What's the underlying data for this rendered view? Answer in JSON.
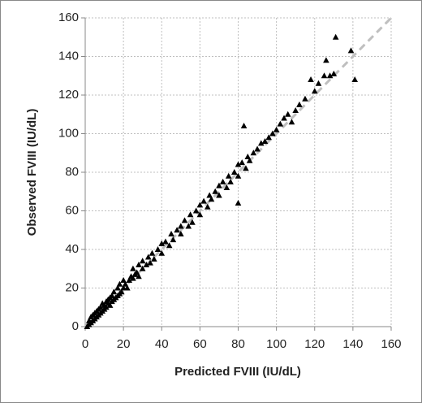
{
  "chart_data": {
    "type": "scatter",
    "x_label": "Predicted FVIII  (IU/dL)",
    "y_label": "Observed FVIII  (IU/dL)",
    "xlim": [
      0,
      160
    ],
    "ylim": [
      0,
      160
    ],
    "xticks": [
      0,
      20,
      40,
      60,
      80,
      100,
      120,
      140,
      160
    ],
    "yticks": [
      0,
      20,
      40,
      60,
      80,
      100,
      120,
      140,
      160
    ],
    "grid": true,
    "marker": "triangle",
    "color": "#000000",
    "reference_line": {
      "x": [
        0,
        160
      ],
      "y": [
        0,
        160
      ],
      "color": "#bfbfbf",
      "dashed": true
    },
    "x": [
      1,
      2,
      2,
      3,
      3,
      4,
      4,
      5,
      5,
      6,
      6,
      7,
      7,
      8,
      8,
      9,
      9,
      10,
      10,
      11,
      11,
      12,
      12,
      13,
      13,
      14,
      14,
      15,
      15,
      16,
      17,
      17,
      18,
      18,
      19,
      20,
      20,
      21,
      22,
      23,
      24,
      25,
      25,
      26,
      27,
      28,
      28,
      30,
      30,
      32,
      33,
      34,
      35,
      36,
      38,
      40,
      40,
      42,
      44,
      45,
      46,
      48,
      50,
      50,
      52,
      54,
      55,
      56,
      58,
      60,
      60,
      62,
      64,
      65,
      66,
      68,
      70,
      70,
      72,
      74,
      75,
      76,
      78,
      80,
      80,
      82,
      83,
      84,
      85,
      86,
      88,
      80,
      90,
      92,
      94,
      96,
      98,
      100,
      102,
      104,
      106,
      108,
      110,
      112,
      115,
      118,
      120,
      122,
      126,
      125,
      128,
      130,
      131,
      139,
      141
    ],
    "y": [
      0,
      1,
      3,
      2,
      5,
      3,
      6,
      4,
      7,
      5,
      8,
      6,
      9,
      7,
      10,
      8,
      12,
      9,
      11,
      10,
      13,
      12,
      14,
      11,
      15,
      13,
      16,
      14,
      18,
      15,
      16,
      20,
      17,
      22,
      18,
      20,
      24,
      22,
      20,
      24,
      26,
      25,
      30,
      27,
      28,
      26,
      32,
      30,
      34,
      32,
      36,
      33,
      38,
      35,
      40,
      38,
      43,
      44,
      42,
      48,
      45,
      50,
      48,
      52,
      55,
      52,
      58,
      54,
      60,
      58,
      63,
      65,
      62,
      68,
      66,
      70,
      68,
      73,
      75,
      72,
      78,
      75,
      80,
      78,
      84,
      85,
      104,
      82,
      88,
      86,
      90,
      64,
      92,
      95,
      96,
      98,
      100,
      102,
      105,
      108,
      110,
      106,
      112,
      115,
      118,
      128,
      122,
      126,
      138,
      130,
      130,
      131,
      150,
      143,
      128
    ]
  }
}
